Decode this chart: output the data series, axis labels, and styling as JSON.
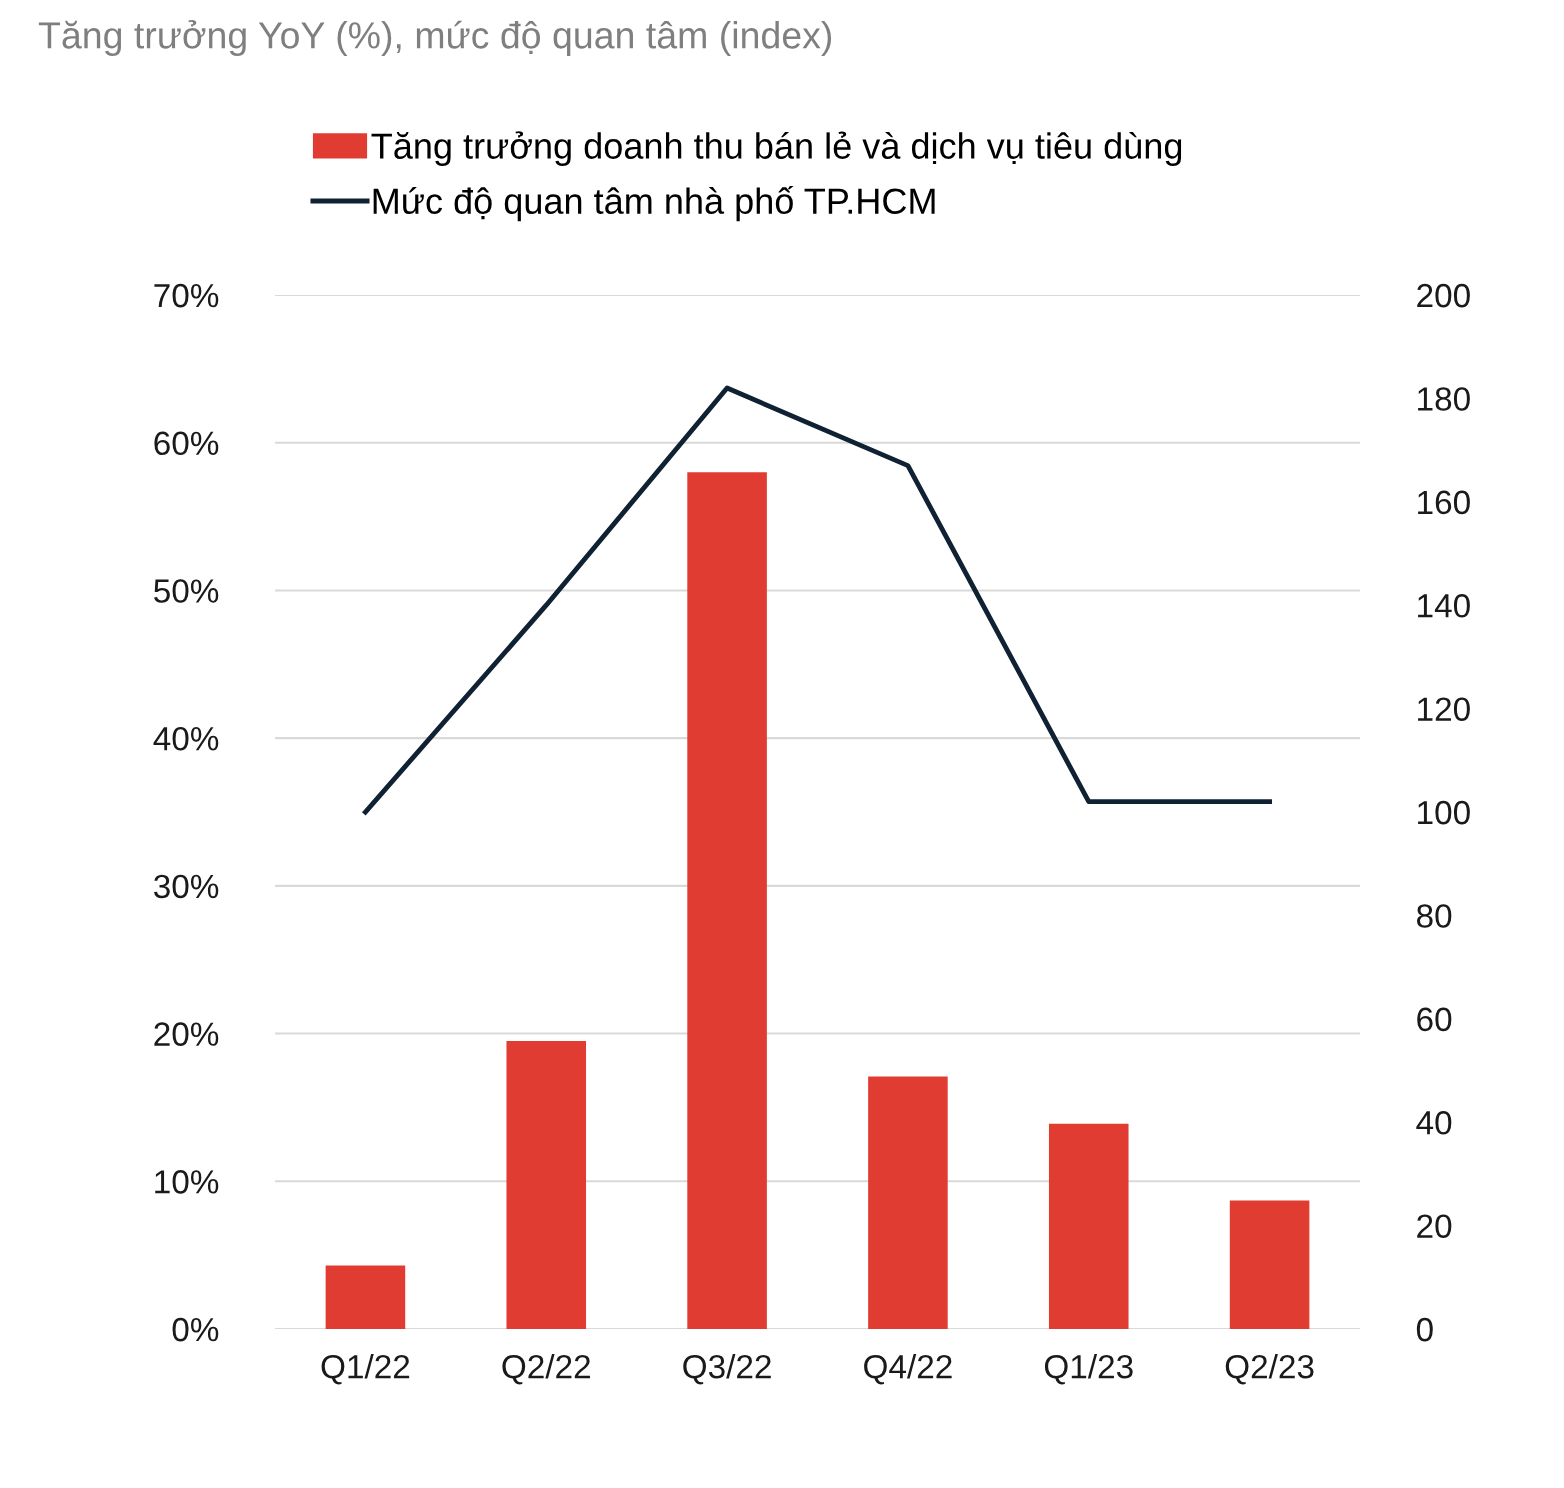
{
  "chart_data": {
    "type": "bar",
    "subtitle": "Tăng trưởng YoY (%), mức độ quan tâm (index)",
    "categories": [
      "Q1/22",
      "Q2/22",
      "Q3/22",
      "Q4/22",
      "Q1/23",
      "Q2/23"
    ],
    "series": [
      {
        "name": "Tăng trưởng doanh thu bán lẻ và dịch vụ tiêu dùng",
        "color": "#e03c31",
        "values": [
          4.3,
          19.5,
          58.0,
          17.1,
          13.9,
          8.7
        ]
      },
      {
        "name": "Mức độ quan tâm nhà phố TP.HCM",
        "type": "line",
        "axis": "y2",
        "color": "#0f2133",
        "values": [
          100,
          140,
          182,
          167,
          102,
          102
        ]
      }
    ],
    "ylim": [
      0,
      70
    ],
    "yticks": [
      {
        "value": 0,
        "label": "0%"
      },
      {
        "value": 10,
        "label": "10%"
      },
      {
        "value": 20,
        "label": "20%"
      },
      {
        "value": 30,
        "label": "30%"
      },
      {
        "value": 40,
        "label": "40%"
      },
      {
        "value": 50,
        "label": "50%"
      },
      {
        "value": 60,
        "label": "60%"
      },
      {
        "value": 70,
        "label": "70%"
      }
    ],
    "y2lim": [
      0,
      200
    ],
    "y2ticks": [
      0,
      20,
      40,
      60,
      80,
      100,
      120,
      140,
      160,
      180,
      200
    ],
    "grid": "y",
    "legend": "top",
    "marker": "none",
    "line_style": "solid"
  }
}
